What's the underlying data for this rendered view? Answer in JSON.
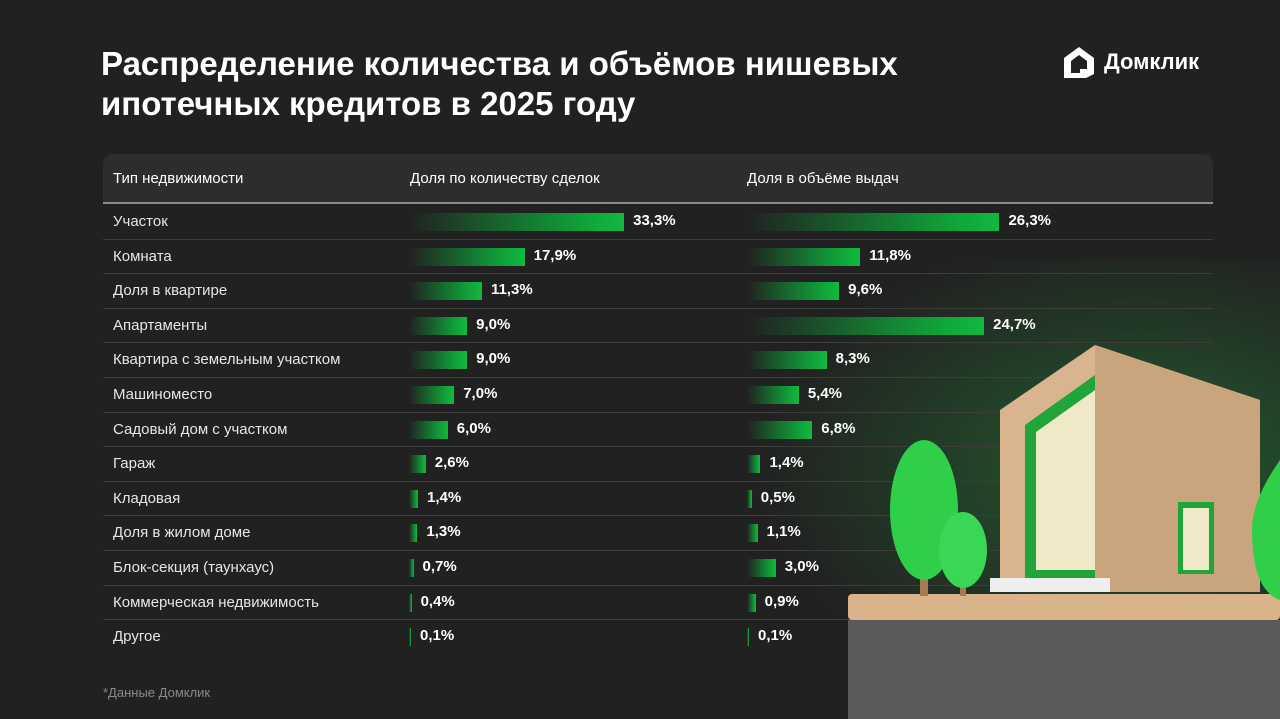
{
  "title": "Распределение количества и объёмов нишевых ипотечных кредитов в 2025 году",
  "logo": "Домклик",
  "footnote": "*Данные Домклик",
  "chart_data": {
    "type": "table",
    "title": "Распределение количества и объёмов нишевых ипотечных кредитов в 2025 году",
    "columns": [
      "Тип недвижимости",
      "Доля по количеству сделок",
      "Доля в объёме выдач"
    ],
    "categories": [
      "Участок",
      "Комната",
      "Доля в квартире",
      "Апартаменты",
      "Квартира с земельным участком",
      "Машиноместо",
      "Садовый дом с участком",
      "Гараж",
      "Кладовая",
      "Доля в жилом доме",
      "Блок-секция (таунхаус)",
      "Коммерческая недвижимость",
      "Другое"
    ],
    "series": [
      {
        "name": "Доля по количеству сделок",
        "values": [
          33.3,
          17.9,
          11.3,
          9.0,
          9.0,
          7.0,
          6.0,
          2.6,
          1.4,
          1.3,
          0.7,
          0.4,
          0.1
        ],
        "labels": [
          "33,3%",
          "17,9%",
          "11,3%",
          "9,0%",
          "9,0%",
          "7,0%",
          "6,0%",
          "2,6%",
          "1,4%",
          "1,3%",
          "0,7%",
          "0,4%",
          "0,1%"
        ]
      },
      {
        "name": "Доля в объёме выдач",
        "values": [
          26.3,
          11.8,
          9.6,
          24.7,
          8.3,
          5.4,
          6.8,
          1.4,
          0.5,
          1.1,
          3.0,
          0.9,
          0.1
        ],
        "labels": [
          "26,3%",
          "11,8%",
          "9,6%",
          "24,7%",
          "8,3%",
          "5,4%",
          "6,8%",
          "1,4%",
          "0,5%",
          "1,1%",
          "3,0%",
          "0,9%",
          "0,1%"
        ]
      }
    ],
    "bar_color": "#12b83f"
  }
}
